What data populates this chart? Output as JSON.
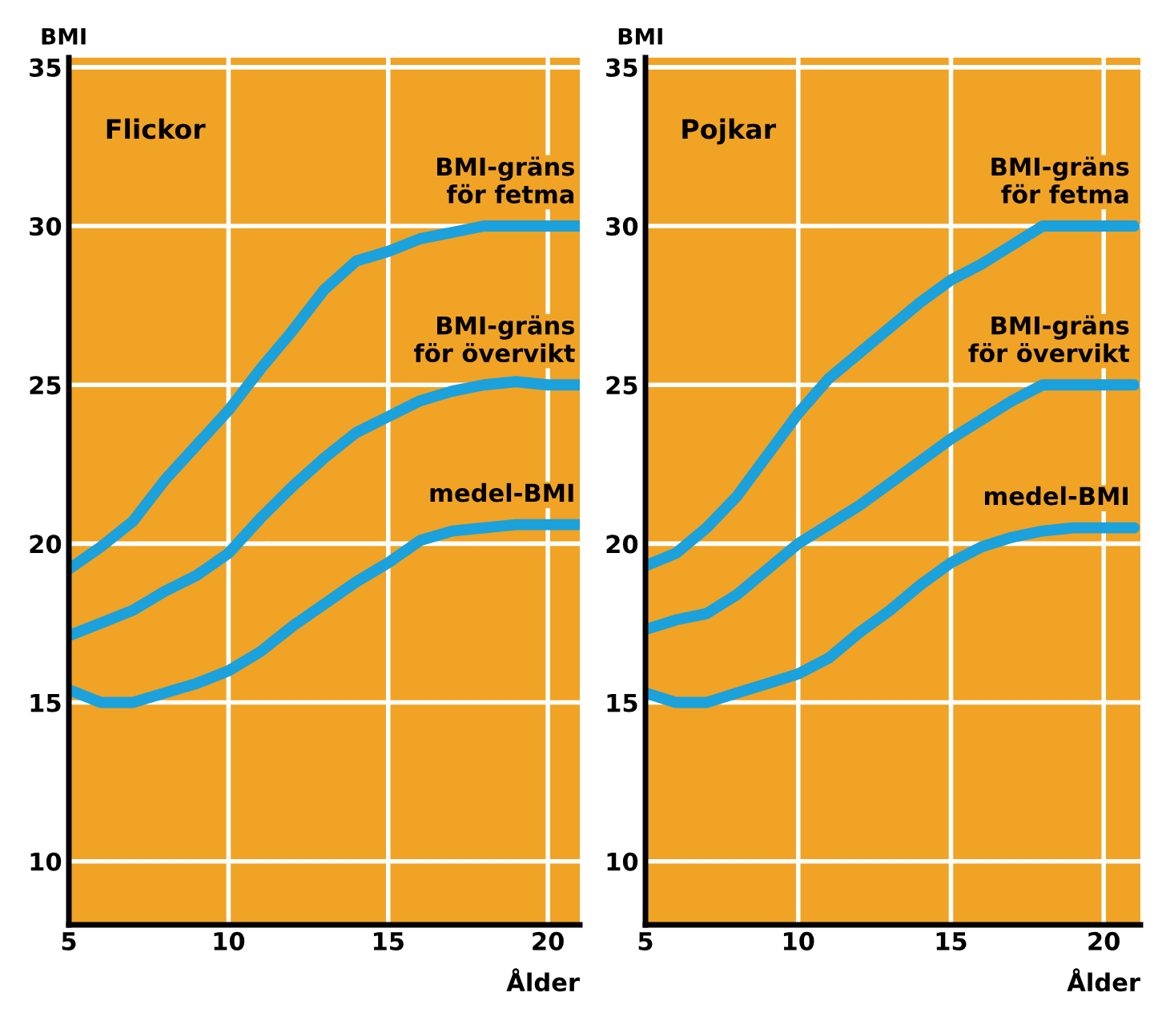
{
  "chart_data": [
    {
      "type": "line",
      "title": "Flickor",
      "xlabel": "Ålder",
      "ylabel": "BMI",
      "xlim": [
        5,
        21
      ],
      "ylim": [
        8,
        35.3
      ],
      "xticks": [
        5,
        10,
        15,
        20
      ],
      "yticks": [
        10,
        15,
        20,
        25,
        30,
        35
      ],
      "grid": true,
      "legend": false,
      "marker": "none",
      "line_style": "solid",
      "x": [
        5,
        6,
        7,
        8,
        9,
        10,
        11,
        12,
        13,
        14,
        15,
        16,
        17,
        18,
        19,
        20,
        21
      ],
      "series": [
        {
          "name": "BMI-gräns\nför fetma",
          "color": "#1ba1dc",
          "values": [
            19.2,
            19.9,
            20.7,
            22.0,
            23.1,
            24.2,
            25.5,
            26.7,
            28.0,
            28.9,
            29.2,
            29.6,
            29.8,
            30.0,
            30.0,
            30.0,
            30.0
          ]
        },
        {
          "name": "BMI-gräns\nför övervikt",
          "color": "#1ba1dc",
          "values": [
            17.1,
            17.5,
            17.9,
            18.5,
            19.0,
            19.7,
            20.8,
            21.8,
            22.7,
            23.5,
            24.0,
            24.5,
            24.8,
            25.0,
            25.1,
            25.0,
            25.0
          ]
        },
        {
          "name": "medel-BMI",
          "color": "#1ba1dc",
          "values": [
            15.4,
            15.0,
            15.0,
            15.3,
            15.6,
            16.0,
            16.6,
            17.4,
            18.1,
            18.8,
            19.4,
            20.1,
            20.4,
            20.5,
            20.6,
            20.6,
            20.6
          ]
        }
      ]
    },
    {
      "type": "line",
      "title": "Pojkar",
      "xlabel": "Ålder",
      "ylabel": "BMI",
      "xlim": [
        5,
        21.2
      ],
      "ylim": [
        8,
        35.3
      ],
      "xticks": [
        5,
        10,
        15,
        20
      ],
      "yticks": [
        10,
        15,
        20,
        25,
        30,
        35
      ],
      "grid": true,
      "legend": false,
      "marker": "none",
      "line_style": "solid",
      "x": [
        5,
        6,
        7,
        8,
        9,
        10,
        11,
        12,
        13,
        14,
        15,
        16,
        17,
        18,
        19,
        20,
        21
      ],
      "series": [
        {
          "name": "BMI-gräns\nför fetma",
          "color": "#1ba1dc",
          "values": [
            19.3,
            19.7,
            20.5,
            21.5,
            22.8,
            24.1,
            25.2,
            26.0,
            26.8,
            27.6,
            28.3,
            28.8,
            29.4,
            30.0,
            30.0,
            30.0,
            30.0
          ]
        },
        {
          "name": "BMI-gräns\nför övervikt",
          "color": "#1ba1dc",
          "values": [
            17.3,
            17.6,
            17.8,
            18.4,
            19.2,
            20.0,
            20.6,
            21.2,
            21.9,
            22.6,
            23.3,
            23.9,
            24.5,
            25.0,
            25.0,
            25.0,
            25.0
          ]
        },
        {
          "name": "medel-BMI",
          "color": "#1ba1dc",
          "values": [
            15.3,
            15.0,
            15.0,
            15.3,
            15.6,
            15.9,
            16.4,
            17.2,
            17.9,
            18.7,
            19.4,
            19.9,
            20.2,
            20.4,
            20.5,
            20.5,
            20.5
          ]
        }
      ]
    }
  ]
}
